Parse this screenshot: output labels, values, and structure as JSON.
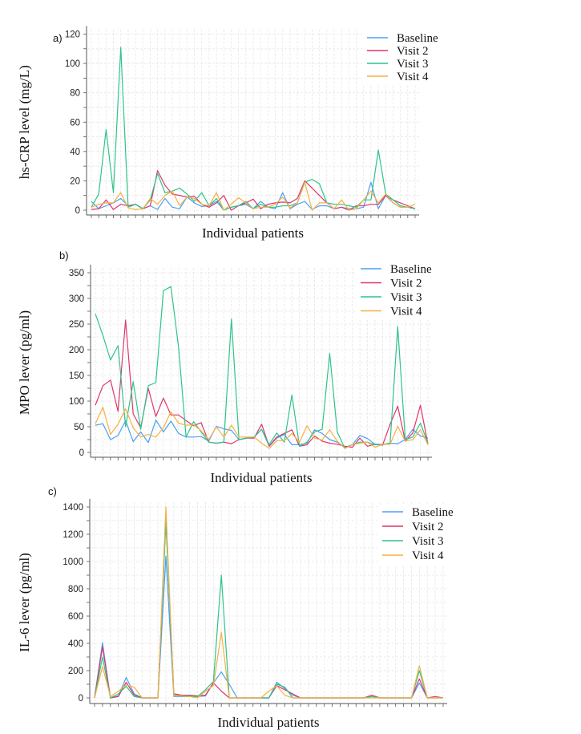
{
  "colors": {
    "Baseline": "#4a9ff5",
    "Visit 2": "#e0356b",
    "Visit 3": "#2ec489",
    "Visit 4": "#f5b041"
  },
  "chart_data": [
    {
      "type": "line",
      "panel_label": "a)",
      "title": "",
      "xlabel": "Individual patients",
      "ylabel": "hs-CRP level (mg/L)",
      "ylim": [
        0,
        120
      ],
      "yticks": [
        0,
        20,
        40,
        60,
        80,
        100,
        120
      ],
      "grid": true,
      "legend": "top-right",
      "series": [
        {
          "name": "Baseline",
          "values": [
            6,
            1,
            3,
            5,
            8,
            3,
            4,
            1,
            3,
            0.5,
            8,
            2,
            1,
            9,
            5,
            2.5,
            3,
            6,
            0,
            2,
            3,
            4,
            1,
            6,
            2,
            1,
            12,
            1,
            4,
            6,
            0.5,
            3,
            3,
            1,
            2,
            1,
            1,
            2,
            19,
            1,
            10,
            5,
            2,
            2,
            1
          ]
        },
        {
          "name": "Visit 2",
          "values": [
            0.5,
            1,
            7,
            0.5,
            4,
            3,
            4,
            1,
            3,
            27,
            17,
            11,
            10,
            9,
            9.5,
            4,
            2,
            5,
            10,
            0,
            3,
            5,
            7.5,
            1,
            4,
            5,
            5.5,
            5,
            8,
            20,
            15,
            10,
            5,
            1,
            2,
            0,
            3,
            3,
            4,
            4,
            10,
            7,
            5,
            3,
            1
          ]
        },
        {
          "name": "Visit 3",
          "values": [
            2,
            11,
            55,
            12,
            111,
            2,
            4,
            1,
            7,
            25,
            12,
            13,
            15,
            11,
            6,
            12,
            3,
            8,
            0,
            2,
            3,
            6,
            1,
            4,
            2,
            2,
            3,
            3,
            5,
            19,
            21,
            18,
            5,
            4,
            4,
            3,
            2,
            7,
            7,
            41,
            11,
            7,
            3,
            2,
            1
          ]
        },
        {
          "name": "Visit 4",
          "values": [
            2,
            4,
            5,
            5,
            12,
            1.5,
            0.5,
            1,
            8,
            4,
            10,
            13,
            3,
            9,
            8,
            4,
            3,
            12,
            0,
            4,
            8.5,
            5,
            1,
            2,
            2,
            4,
            9,
            1.5,
            5,
            19,
            0,
            5,
            5,
            1,
            7,
            0,
            1,
            7,
            13,
            5,
            11,
            5,
            2,
            2,
            4
          ]
        }
      ]
    },
    {
      "type": "line",
      "panel_label": "b)",
      "title": "",
      "xlabel": "Individual patients",
      "ylabel": "MPO lever (pg/ml)",
      "ylim": [
        0,
        350
      ],
      "yticks": [
        0,
        50,
        100,
        150,
        200,
        250,
        300,
        350
      ],
      "grid": true,
      "legend": "top-right",
      "series": [
        {
          "name": "Baseline",
          "values": [
            53,
            56,
            25,
            33,
            62,
            21,
            40,
            19,
            63,
            40,
            61,
            37,
            30,
            30,
            31,
            22,
            51,
            46,
            43,
            25,
            28,
            30,
            45,
            12,
            28,
            35,
            15,
            15,
            18,
            44,
            37,
            25,
            20,
            10,
            15,
            33,
            27,
            16,
            16,
            18,
            17,
            25,
            45,
            32,
            28
          ]
        },
        {
          "name": "Visit 2",
          "values": [
            92,
            130,
            141,
            80,
            258,
            75,
            48,
            125,
            70,
            106,
            73,
            73,
            62,
            52,
            58,
            20,
            18,
            20,
            17,
            25,
            28,
            28,
            55,
            12,
            30,
            37,
            44,
            12,
            15,
            32,
            22,
            18,
            16,
            12,
            10,
            28,
            12,
            16,
            14,
            55,
            90,
            22,
            38,
            92,
            16
          ]
        },
        {
          "name": "Visit 3",
          "values": [
            270,
            228,
            180,
            208,
            50,
            138,
            45,
            130,
            136,
            315,
            323,
            205,
            30,
            60,
            40,
            20,
            18,
            20,
            260,
            25,
            28,
            30,
            45,
            15,
            38,
            20,
            112,
            12,
            20,
            40,
            45,
            193,
            40,
            8,
            15,
            20,
            20,
            15,
            15,
            18,
            245,
            25,
            30,
            57,
            18
          ]
        },
        {
          "name": "Visit 4",
          "values": [
            56,
            88,
            35,
            55,
            85,
            48,
            30,
            35,
            30,
            48,
            79,
            57,
            53,
            54,
            42,
            25,
            50,
            30,
            53,
            30,
            30,
            30,
            18,
            8,
            23,
            23,
            37,
            20,
            52,
            28,
            24,
            44,
            22,
            8,
            15,
            18,
            20,
            10,
            16,
            16,
            51,
            22,
            25,
            44,
            15
          ]
        }
      ]
    },
    {
      "type": "line",
      "panel_label": "c)",
      "title": "",
      "xlabel": "Individual patients",
      "ylabel": "IL-6 lever (pg/ml)",
      "ylim": [
        0,
        1400
      ],
      "yticks": [
        0,
        200,
        400,
        600,
        800,
        1000,
        1200,
        1400
      ],
      "grid": true,
      "legend": "top-right",
      "series": [
        {
          "name": "Baseline",
          "values": [
            0,
            405,
            0,
            15,
            150,
            30,
            0,
            0,
            0,
            1040,
            10,
            10,
            10,
            10,
            15,
            110,
            190,
            100,
            0,
            0,
            0,
            0,
            0,
            115,
            70,
            20,
            0,
            0,
            0,
            0,
            0,
            0,
            0,
            0,
            0,
            10,
            0,
            0,
            0,
            0,
            0,
            110,
            0,
            0,
            0
          ]
        },
        {
          "name": "Visit 2",
          "values": [
            0,
            375,
            0,
            10,
            115,
            20,
            0,
            0,
            0,
            1320,
            30,
            20,
            20,
            15,
            20,
            110,
            50,
            0,
            0,
            0,
            0,
            0,
            0,
            90,
            60,
            30,
            0,
            0,
            0,
            0,
            0,
            0,
            0,
            0,
            0,
            20,
            0,
            0,
            0,
            0,
            0,
            140,
            0,
            10,
            0
          ]
        },
        {
          "name": "Visit 3",
          "values": [
            0,
            300,
            0,
            30,
            85,
            10,
            0,
            0,
            0,
            1300,
            20,
            15,
            15,
            10,
            60,
            120,
            900,
            0,
            0,
            0,
            0,
            0,
            0,
            100,
            80,
            0,
            0,
            0,
            0,
            0,
            0,
            0,
            0,
            0,
            0,
            10,
            0,
            0,
            0,
            0,
            0,
            200,
            0,
            0,
            0
          ]
        },
        {
          "name": "Visit 4",
          "values": [
            0,
            230,
            10,
            50,
            95,
            80,
            0,
            0,
            0,
            1400,
            15,
            15,
            10,
            0,
            50,
            90,
            480,
            0,
            0,
            0,
            0,
            0,
            50,
            90,
            20,
            0,
            0,
            0,
            0,
            0,
            0,
            0,
            0,
            0,
            0,
            0,
            0,
            0,
            0,
            0,
            0,
            235,
            0,
            0,
            0
          ]
        }
      ]
    }
  ]
}
